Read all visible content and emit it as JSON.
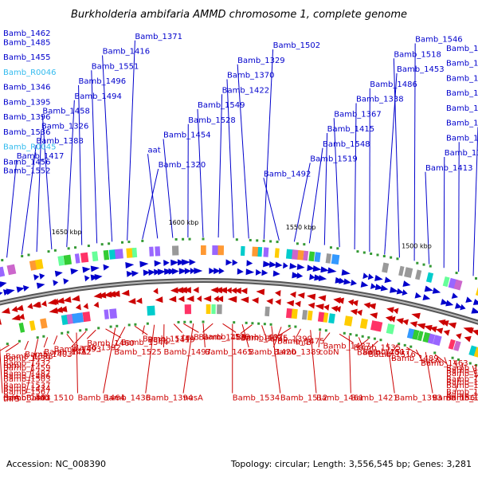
{
  "title": "Burkholderia ambifaria AMMD chromosome 1, complete genome",
  "footer": {
    "accession": "Accession: NC_008390",
    "topology": "Topology: circular; Length: 3,556,545 bp; Genes: 3,281"
  },
  "scale_labels": [
    "1450 kbp",
    "1500 kbp",
    "1550 kbp",
    "1600 kbp",
    "1650 kbp",
    "1700 kbp"
  ],
  "colors": {
    "forward": "#0000cc",
    "reverse": "#cc0000",
    "rna": "#33bbee",
    "backbone": "#888888"
  },
  "top_labels": [
    "Bamb_1462",
    "Bamb_R0046",
    "Bamb_1458",
    "aat",
    "Bamb_1502",
    "Bamb_1486",
    "Bamb_1495",
    "Bamb_1456",
    "Bamb_1455",
    "Bamb_1494",
    "Bamb_1454",
    "Bamb_1492",
    "Bamb_1453",
    "Bamb_1491",
    "Bamb_R0045",
    "Bamb_1485",
    "Bamb_1496",
    "Bamb_1528",
    "Bamb_1519",
    "Bamb_1518",
    "Bamb_1527",
    "Bamb_1536",
    "Bamb_1552",
    "Bamb_1551",
    "Bamb_1549",
    "Bamb_1548",
    "Bamb_1546",
    "Bamb_1426",
    "Bamb_1396",
    "Bamb_1417",
    "Bamb_1416",
    "Bamb_1422",
    "Bamb_1415",
    "Bamb_1413",
    "Bamb_1418",
    "Bamb_1395",
    "Bamb_1388",
    "Bamb_1371",
    "Bamb_1370",
    "Bamb_1367",
    "Bamb_1354",
    "Bamb_1352",
    "Bamb_1346",
    "Bamb_1326",
    "Bamb_1320",
    "Bamb_1329",
    "Bamb_1338",
    "Bamb_1303"
  ],
  "bottom_labels": [
    "thrS",
    "rpmI",
    "ihfA",
    "nusA",
    "infB",
    "sucA",
    "Bamb_1391",
    "rbfA",
    "Bamb_1392",
    "truB",
    "Bamb_1389",
    "Bamb_1393",
    "Bamb_1414",
    "Bamb_1406",
    "Bamb_1412",
    "Bamb_1394",
    "Bamb_1399",
    "Bamb_1400",
    "Bamb_1401",
    "Bamb_1402",
    "Bamb_1403",
    "Bamb_1419",
    "Bamb_1420",
    "Bamb_1421",
    "Bamb_1429",
    "Bamb_1434",
    "Bamb_1439",
    "Bamb_1436",
    "Bamb_1437",
    "Bamb_1427",
    "Bamb_1430",
    "Bamb_1431",
    "Bamb_1432",
    "Bamb_1460",
    "Bamb_1465",
    "Bamb_1461",
    "Bamb_1463",
    "Bamb_1448",
    "Bamb_1459",
    "Bamb_1464",
    "Bamb_1466",
    "Bamb_1475",
    "Bamb_1489",
    "Bamb_1490",
    "Bamb_1487",
    "Bamb_1493",
    "Bamb_1497",
    "Bamb_1512",
    "Bamb_1516",
    "Bamb_1521",
    "Bamb_1503",
    "Bamb_1510",
    "Bamb_1514",
    "Bamb_1515",
    "Bamb_1517",
    "Bamb_1522",
    "Bamb_1537",
    "Bamb_1538",
    "Bamb_1525",
    "Bamb_1534",
    "Bamb_1535",
    "Bamb_1556",
    "Bamb_1567",
    "Bamb_1543",
    "Bamb_1544",
    "Bamb_1539",
    "cobN",
    "Bamb_1560"
  ]
}
